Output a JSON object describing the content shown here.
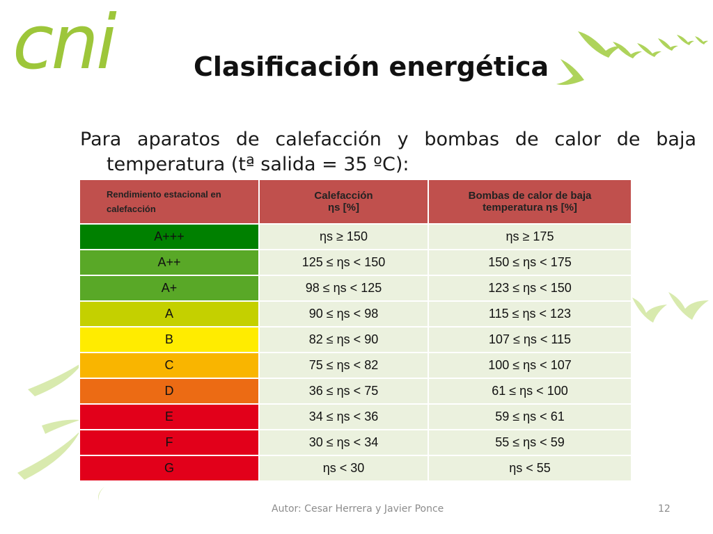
{
  "logo": {
    "text": "cni"
  },
  "slide": {
    "title": "Clasificación energética",
    "intro": "Para aparatos de calefacción y bombas de calor de baja temperatura (tª salida = 35 ºC):"
  },
  "table": {
    "headers": {
      "col1": "Rendimiento estacional en calefacción",
      "col2_line1": "Calefacción",
      "col2_line2": "ηs [%]",
      "col3_line1": "Bombas de calor de baja",
      "col3_line2": "temperatura ηs [%]"
    },
    "rows": [
      {
        "cls": "A+++",
        "color": "#008000",
        "heating": "ηs ≥ 150",
        "heatpump": "ηs ≥ 175"
      },
      {
        "cls": "A++",
        "color": "#59a827",
        "heating": "125 ≤ ηs < 150",
        "heatpump": "150 ≤ ηs < 175"
      },
      {
        "cls": "A+",
        "color": "#59a827",
        "heating": "98 ≤ ηs < 125",
        "heatpump": "123 ≤ ηs < 150"
      },
      {
        "cls": "A",
        "color": "#c4d000",
        "heating": "90 ≤ ηs < 98",
        "heatpump": "115 ≤ ηs < 123"
      },
      {
        "cls": "B",
        "color": "#ffec00",
        "heating": "82 ≤ ηs < 90",
        "heatpump": "107 ≤ ηs < 115"
      },
      {
        "cls": "C",
        "color": "#f9b500",
        "heating": "75 ≤ ηs < 82",
        "heatpump": "100 ≤ ηs < 107"
      },
      {
        "cls": "D",
        "color": "#ec6b14",
        "heating": "36 ≤ ηs < 75",
        "heatpump": "61 ≤ ηs < 100"
      },
      {
        "cls": "E",
        "color": "#e2001a",
        "heating": "34 ≤ ηs < 36",
        "heatpump": "59 ≤ ηs < 61"
      },
      {
        "cls": "F",
        "color": "#e2001a",
        "heating": "30 ≤ ηs < 34",
        "heatpump": "55 ≤ ηs < 59"
      },
      {
        "cls": "G",
        "color": "#e2001a",
        "heating": "ηs < 30",
        "heatpump": "ηs < 55"
      }
    ]
  },
  "footer": {
    "author": "Autor: Cesar Herrera y Javier Ponce",
    "page": "12"
  },
  "colors": {
    "header_bg": "#c0504d",
    "value_bg": "#ebf1de",
    "brand_green": "#9dc63a"
  }
}
